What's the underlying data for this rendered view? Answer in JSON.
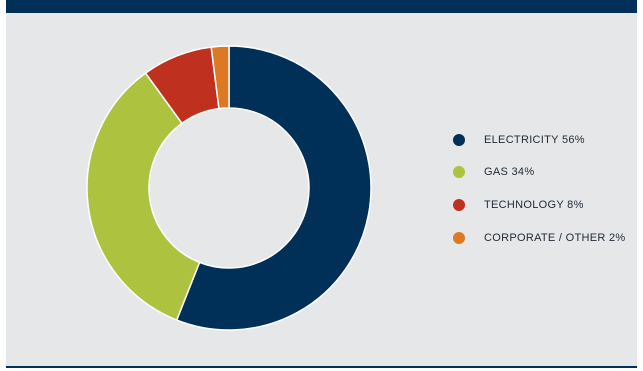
{
  "chart_data": {
    "type": "pie",
    "style": "donut",
    "categories": [
      "ELECTRICITY",
      "GAS",
      "TECHNOLOGY",
      "CORPORATE / OTHER"
    ],
    "values": [
      56,
      34,
      8,
      2
    ],
    "colors": [
      "#003057",
      "#adc33f",
      "#c0301e",
      "#dc7a23"
    ],
    "legend": {
      "placement": "right",
      "labels": [
        "ELECTRICITY 56%",
        "GAS 34%",
        "TECHNOLOGY 8%",
        "CORPORATE / OTHER 2%"
      ]
    }
  },
  "theme": {
    "background": "#e6e7e8",
    "border": "#003057",
    "separator": "#ffffff"
  }
}
